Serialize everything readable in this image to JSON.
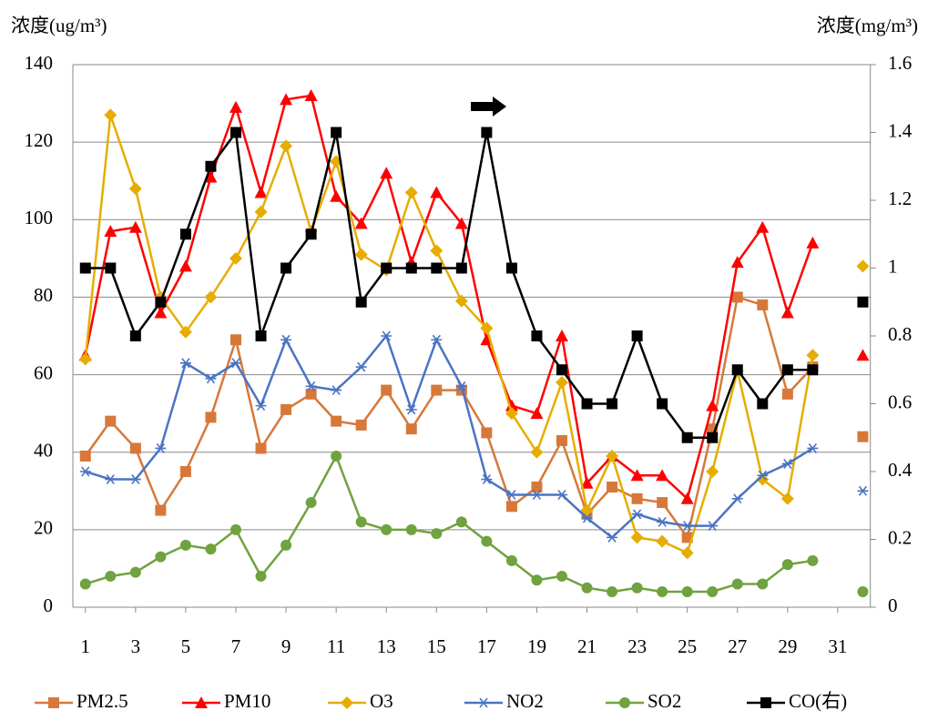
{
  "chart_data": {
    "type": "line",
    "y_label": "浓度(ug/m³)",
    "y2_label": "浓度(mg/m³)",
    "x": [
      1,
      2,
      3,
      4,
      5,
      6,
      7,
      8,
      9,
      10,
      11,
      12,
      13,
      14,
      15,
      16,
      17,
      18,
      19,
      20,
      21,
      22,
      23,
      24,
      25,
      26,
      27,
      28,
      29,
      30,
      31,
      32
    ],
    "xlim": [
      0.5,
      32.3
    ],
    "xticks": [
      1,
      3,
      5,
      7,
      9,
      11,
      13,
      15,
      17,
      19,
      21,
      23,
      25,
      27,
      29,
      31
    ],
    "ylim": [
      0,
      140
    ],
    "yticks": [
      0,
      20,
      40,
      60,
      80,
      100,
      120,
      140
    ],
    "y2lim": [
      0,
      1.6
    ],
    "y2ticks": [
      0,
      0.2,
      0.4,
      0.6,
      0.8,
      1,
      1.2,
      1.4,
      1.6
    ],
    "grid": true,
    "legend": "bottom",
    "series": [
      {
        "name": "PM2.5",
        "color": "#d7783a",
        "marker": "square",
        "values": [
          39,
          48,
          41,
          25,
          35,
          49,
          69,
          41,
          51,
          55,
          48,
          47,
          56,
          46,
          56,
          56,
          45,
          26,
          31,
          43,
          24,
          31,
          28,
          27,
          18,
          46,
          80,
          78,
          55,
          62,
          null,
          44
        ]
      },
      {
        "name": "PM10",
        "color": "#ff0000",
        "marker": "triangle",
        "values": [
          65,
          97,
          98,
          76,
          88,
          111,
          129,
          107,
          131,
          132,
          106,
          99,
          112,
          89,
          107,
          99,
          69,
          52,
          50,
          70,
          32,
          39,
          34,
          34,
          28,
          52,
          89,
          98,
          76,
          94,
          null,
          65
        ]
      },
      {
        "name": "O3",
        "color": "#e6ad00",
        "marker": "diamond",
        "values": [
          64,
          127,
          108,
          80,
          71,
          80,
          90,
          102,
          119,
          97,
          115,
          91,
          87,
          107,
          92,
          79,
          72,
          50,
          40,
          58,
          25,
          39,
          18,
          17,
          14,
          35,
          61,
          33,
          28,
          65,
          null,
          88
        ]
      },
      {
        "name": "NO2",
        "color": "#4a74c4",
        "marker": "asterisk",
        "values": [
          35,
          33,
          33,
          41,
          63,
          59,
          63,
          52,
          69,
          57,
          56,
          62,
          70,
          51,
          69,
          57,
          33,
          29,
          29,
          29,
          23,
          18,
          24,
          22,
          21,
          21,
          28,
          34,
          37,
          41,
          null,
          30
        ]
      },
      {
        "name": "SO2",
        "color": "#70a23f",
        "marker": "circle",
        "values": [
          6,
          8,
          9,
          13,
          16,
          15,
          20,
          8,
          16,
          27,
          39,
          22,
          20,
          20,
          19,
          22,
          17,
          12,
          7,
          8,
          5,
          4,
          5,
          4,
          4,
          4,
          6,
          6,
          11,
          12,
          null,
          4
        ]
      },
      {
        "name": "CO(右)",
        "color": "#000000",
        "marker": "square",
        "axis": "y2",
        "values": [
          1,
          1,
          0.8,
          0.9,
          1.1,
          1.3,
          1.4,
          0.8,
          1,
          1.1,
          1.4,
          0.9,
          1,
          1,
          1,
          1,
          1.4,
          1,
          0.8,
          0.7,
          0.6,
          0.6,
          0.8,
          0.6,
          0.5,
          0.5,
          0.7,
          0.6,
          0.7,
          0.7,
          null,
          0.9
        ]
      }
    ]
  }
}
